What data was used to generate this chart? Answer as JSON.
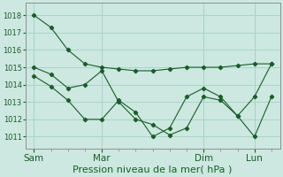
{
  "background_color": "#cce8e0",
  "grid_color": "#aad4cc",
  "line_color": "#1a5c2a",
  "marker_color": "#1a5c2a",
  "xlabel": "Pression niveau de la mer( hPa )",
  "yticks": [
    1011,
    1012,
    1013,
    1014,
    1015,
    1016,
    1017,
    1018
  ],
  "ylim": [
    1010.3,
    1018.7
  ],
  "xtick_labels": [
    "Sam",
    "Mar",
    "Dim",
    "Lun"
  ],
  "xtick_positions": [
    0,
    8,
    20,
    26
  ],
  "minor_xtick_positions": [
    0,
    2,
    4,
    6,
    8,
    10,
    12,
    14,
    16,
    18,
    20,
    22,
    24,
    26,
    28
  ],
  "xlim": [
    -1,
    29
  ],
  "series1_x": [
    0,
    2,
    4,
    6,
    8,
    10,
    12,
    14,
    16,
    18,
    20,
    22,
    24,
    26,
    28
  ],
  "series1_y": [
    1018.0,
    1017.3,
    1016.0,
    1015.2,
    1015.0,
    1014.9,
    1014.8,
    1014.8,
    1014.9,
    1015.0,
    1015.0,
    1015.0,
    1015.1,
    1015.2,
    1015.2
  ],
  "series2_x": [
    0,
    2,
    4,
    6,
    8,
    10,
    12,
    14,
    16,
    18,
    20,
    22,
    24,
    26,
    28
  ],
  "series2_y": [
    1015.0,
    1014.6,
    1013.8,
    1014.0,
    1014.8,
    1013.0,
    1012.0,
    1011.7,
    1011.1,
    1011.5,
    1013.3,
    1013.1,
    1012.2,
    1013.3,
    1015.2
  ],
  "series3_x": [
    0,
    2,
    4,
    6,
    8,
    10,
    12,
    14,
    16,
    18,
    20,
    22,
    24,
    26,
    28
  ],
  "series3_y": [
    1014.5,
    1013.9,
    1013.1,
    1012.0,
    1012.0,
    1013.1,
    1012.4,
    1011.0,
    1011.5,
    1013.3,
    1013.8,
    1013.3,
    1012.2,
    1011.0,
    1013.3
  ],
  "vline_positions": [
    0,
    8,
    20,
    26
  ],
  "vline_color": "#909090",
  "tick_color": "#555555",
  "ylabel_fontsize": 6.5,
  "xlabel_fontsize": 8.0,
  "xtick_fontsize": 7.5,
  "ytick_fontsize": 6.0,
  "linewidth": 0.8,
  "markersize": 2.2
}
